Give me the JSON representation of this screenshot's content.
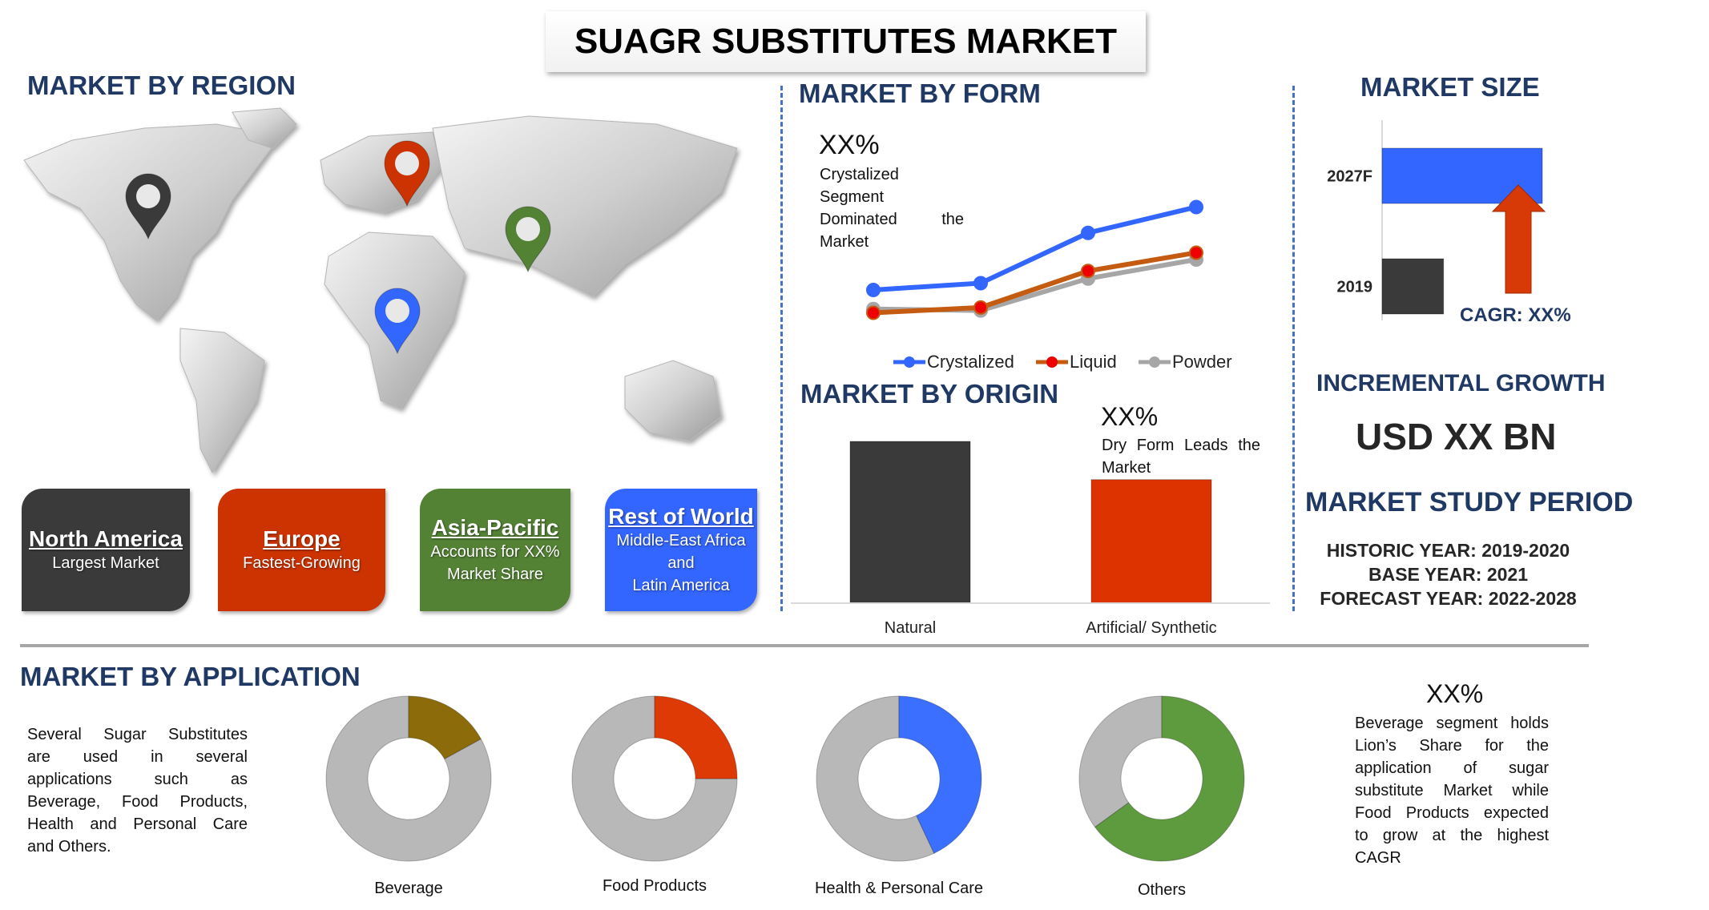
{
  "title": "SUAGR SUBSTITUTES MARKET",
  "region": {
    "heading": "MARKET BY REGION",
    "pins": [
      {
        "name": "north-america",
        "color": "#3a3a3a"
      },
      {
        "name": "europe",
        "color": "#cc3300"
      },
      {
        "name": "asia-pacific",
        "color": "#548235"
      },
      {
        "name": "africa",
        "color": "#3366ff"
      }
    ],
    "boxes": [
      {
        "title": "North America",
        "lines": [
          "Largest Market"
        ],
        "color": "#3a3a3a"
      },
      {
        "title": "Europe",
        "lines": [
          "Fastest-Growing"
        ],
        "color": "#cc3300"
      },
      {
        "title": "Asia-Pacific",
        "lines": [
          "Accounts for XX%",
          "Market Share"
        ],
        "color": "#548235"
      },
      {
        "title": "Rest of World",
        "lines": [
          "Middle-East Africa",
          "and",
          "Latin America"
        ],
        "color": "#3366ff"
      }
    ]
  },
  "form": {
    "heading": "MARKET BY FORM",
    "stat": "XX%",
    "note_lines": [
      "Crystalized",
      "Segment",
      "Dominated",
      "the",
      "Market"
    ]
  },
  "origin": {
    "heading": "MARKET BY ORIGIN",
    "stat": "XX%",
    "note_lines": [
      "Dry Form Leads the",
      "Market"
    ]
  },
  "size": {
    "heading": "MARKET SIZE",
    "cagr": "CAGR: XX%",
    "incremental_heading": "INCREMENTAL GROWTH",
    "incremental_value": "USD XX BN",
    "study_heading": "MARKET STUDY PERIOD",
    "study_lines": [
      "HISTORIC YEAR: 2019-2020",
      "BASE YEAR: 2021",
      "FORECAST YEAR: 2022-2028"
    ]
  },
  "application": {
    "heading": "MARKET BY APPLICATION",
    "desc_lines": [
      "Several Sugar Substitutes",
      "are used in several",
      "applications such as",
      "Beverage, Food Products,",
      "Health and Personal Care",
      "and Others."
    ],
    "stat": "XX%",
    "note_lines": [
      "Beverage segment holds",
      "Lion’s Share for the",
      "application of sugar",
      "substitute Market while",
      "Food Products expected",
      "to grow at the highest",
      "CAGR"
    ]
  },
  "chart_data": [
    {
      "type": "line",
      "title": "MARKET BY FORM",
      "x": [
        1,
        2,
        3,
        4
      ],
      "series": [
        {
          "name": "Crystalized",
          "values": [
            4.0,
            4.9,
            11.5,
            14.9
          ],
          "color": "#3366ff"
        },
        {
          "name": "Liquid",
          "values": [
            1.0,
            1.7,
            6.5,
            8.9
          ],
          "color": "#c55a11"
        },
        {
          "name": "Powder",
          "values": [
            1.5,
            1.3,
            5.5,
            8.0
          ],
          "color": "#a6a6a6"
        }
      ],
      "ylim": [
        0,
        16
      ],
      "grid": false,
      "legend": "bottom"
    },
    {
      "type": "bar",
      "title": "MARKET BY ORIGIN",
      "categories": [
        "Natural",
        "Artificial/ Synthetic"
      ],
      "values": [
        148,
        113
      ],
      "colors": [
        "#3a3a3a",
        "#dd3300"
      ],
      "ylim": [
        0,
        160
      ],
      "grid": false
    },
    {
      "type": "bar",
      "orientation": "horizontal",
      "title": "MARKET SIZE",
      "categories": [
        "2027F",
        "2019"
      ],
      "values": [
        146,
        56
      ],
      "colors": [
        "#3366ff",
        "#3a3a3a"
      ],
      "xlim": [
        0,
        150
      ],
      "grid": false
    },
    {
      "type": "pie",
      "variant": "donut",
      "title": "MARKET BY APPLICATION",
      "categories": [
        "Beverage",
        "Food Products",
        "Health & Personal Care",
        "Others"
      ],
      "values": [
        0.17,
        0.25,
        0.43,
        0.65
      ],
      "colors": [
        "#8b6b0a",
        "#dd3a05",
        "#3a6fff",
        "#5e9a3e"
      ],
      "rest_color": "#b8b8b8"
    }
  ]
}
